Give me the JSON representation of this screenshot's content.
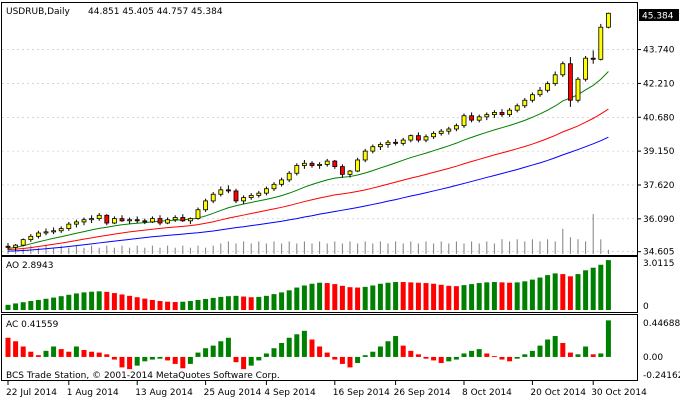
{
  "window": {
    "title": "USDRUB,Daily",
    "ohlc": "44.851 45.405 44.757 45.384",
    "current_price": "45.384",
    "copyright": "BCS Trade Station, © 2001-2014 MetaQuotes Software Corp."
  },
  "colors": {
    "background": "#ffffff",
    "frame": "#000000",
    "grid": "#c0c0c0",
    "bull_candle": "#ffff00",
    "bear_candle": "#ff0000",
    "candle_outline": "#000000",
    "ma_fast": "#008000",
    "ma_mid": "#ff0000",
    "ma_slow": "#0000ff",
    "volume": "#808080",
    "osc_up": "#008000",
    "osc_down": "#ff0000",
    "price_tag_bg": "#000000",
    "price_tag_fg": "#ffffff"
  },
  "chart_data": [
    {
      "type": "candlestick",
      "title": "USDRUB,Daily",
      "ylim": [
        34.5,
        45.8
      ],
      "price_ticks": [
        "43.740",
        "42.210",
        "40.680",
        "39.150",
        "37.620",
        "36.090",
        "34.605"
      ],
      "date_labels": [
        "22 Jul 2014",
        "1 Aug 2014",
        "13 Aug 2014",
        "25 Aug 2014",
        "4 Sep 2014",
        "16 Sep 2014",
        "26 Sep 2014",
        "8 Oct 2014",
        "20 Oct 2014",
        "30 Oct 2014"
      ],
      "candles": [
        [
          34.85,
          35.0,
          34.7,
          34.8
        ],
        [
          34.8,
          34.95,
          34.65,
          34.9
        ],
        [
          34.9,
          35.2,
          34.85,
          35.15
        ],
        [
          35.15,
          35.4,
          35.05,
          35.3
        ],
        [
          35.3,
          35.55,
          35.2,
          35.45
        ],
        [
          35.45,
          35.65,
          35.35,
          35.5
        ],
        [
          35.5,
          35.7,
          35.4,
          35.55
        ],
        [
          35.55,
          35.75,
          35.45,
          35.65
        ],
        [
          35.65,
          35.95,
          35.55,
          35.85
        ],
        [
          35.85,
          36.05,
          35.7,
          35.95
        ],
        [
          35.95,
          36.15,
          35.8,
          36.05
        ],
        [
          36.05,
          36.25,
          35.9,
          36.1
        ],
        [
          36.1,
          36.35,
          36.0,
          36.25
        ],
        [
          36.25,
          36.3,
          35.8,
          35.9
        ],
        [
          35.9,
          36.2,
          35.85,
          36.1
        ],
        [
          36.1,
          36.25,
          35.95,
          36.0
        ],
        [
          36.0,
          36.15,
          35.85,
          36.05
        ],
        [
          36.05,
          36.2,
          35.9,
          36.0
        ],
        [
          36.0,
          36.1,
          35.85,
          35.95
        ],
        [
          35.95,
          36.2,
          35.9,
          36.1
        ],
        [
          36.1,
          36.25,
          35.8,
          35.9
        ],
        [
          35.9,
          36.15,
          35.85,
          36.05
        ],
        [
          36.05,
          36.25,
          35.95,
          36.15
        ],
        [
          36.15,
          36.3,
          35.95,
          36.0
        ],
        [
          36.0,
          36.15,
          35.85,
          36.1
        ],
        [
          36.1,
          36.6,
          36.05,
          36.5
        ],
        [
          36.5,
          37.0,
          36.4,
          36.9
        ],
        [
          36.9,
          37.3,
          36.8,
          37.2
        ],
        [
          37.2,
          37.55,
          37.1,
          37.4
        ],
        [
          37.4,
          37.6,
          37.25,
          37.35
        ],
        [
          37.35,
          37.45,
          36.8,
          36.9
        ],
        [
          36.9,
          37.15,
          36.75,
          37.05
        ],
        [
          37.05,
          37.25,
          36.95,
          37.15
        ],
        [
          37.15,
          37.35,
          37.05,
          37.25
        ],
        [
          37.25,
          37.55,
          37.15,
          37.45
        ],
        [
          37.45,
          37.75,
          37.35,
          37.65
        ],
        [
          37.65,
          37.95,
          37.55,
          37.85
        ],
        [
          37.85,
          38.25,
          37.75,
          38.15
        ],
        [
          38.15,
          38.6,
          38.05,
          38.5
        ],
        [
          38.5,
          38.75,
          38.35,
          38.6
        ],
        [
          38.6,
          38.7,
          38.4,
          38.5
        ],
        [
          38.5,
          38.65,
          38.35,
          38.55
        ],
        [
          38.55,
          38.8,
          38.45,
          38.7
        ],
        [
          38.7,
          38.75,
          38.35,
          38.45
        ],
        [
          38.45,
          38.55,
          37.95,
          38.1
        ],
        [
          38.1,
          38.3,
          37.95,
          38.25
        ],
        [
          38.25,
          38.85,
          38.2,
          38.75
        ],
        [
          38.75,
          39.25,
          38.65,
          39.15
        ],
        [
          39.15,
          39.45,
          39.05,
          39.35
        ],
        [
          39.35,
          39.55,
          39.2,
          39.45
        ],
        [
          39.45,
          39.65,
          39.3,
          39.55
        ],
        [
          39.55,
          39.7,
          39.4,
          39.5
        ],
        [
          39.5,
          39.75,
          39.4,
          39.65
        ],
        [
          39.65,
          39.9,
          39.55,
          39.85
        ],
        [
          39.85,
          40.0,
          39.55,
          39.65
        ],
        [
          39.65,
          39.9,
          39.55,
          39.8
        ],
        [
          39.8,
          40.05,
          39.7,
          39.95
        ],
        [
          39.95,
          40.15,
          39.85,
          40.05
        ],
        [
          40.05,
          40.25,
          39.9,
          40.15
        ],
        [
          40.15,
          40.4,
          40.05,
          40.3
        ],
        [
          40.3,
          40.85,
          40.2,
          40.75
        ],
        [
          40.75,
          40.9,
          40.45,
          40.55
        ],
        [
          40.55,
          40.8,
          40.45,
          40.7
        ],
        [
          40.7,
          40.9,
          40.55,
          40.8
        ],
        [
          40.8,
          41.0,
          40.65,
          40.9
        ],
        [
          40.9,
          41.05,
          40.7,
          40.8
        ],
        [
          40.8,
          41.1,
          40.7,
          41.0
        ],
        [
          41.0,
          41.3,
          40.9,
          41.2
        ],
        [
          41.2,
          41.55,
          41.1,
          41.45
        ],
        [
          41.45,
          41.8,
          41.35,
          41.7
        ],
        [
          41.7,
          42.05,
          41.6,
          41.9
        ],
        [
          41.9,
          42.3,
          41.8,
          42.2
        ],
        [
          42.2,
          42.75,
          42.1,
          42.6
        ],
        [
          42.6,
          43.2,
          42.5,
          43.1
        ],
        [
          43.1,
          43.4,
          41.15,
          41.45
        ],
        [
          41.45,
          42.5,
          41.35,
          42.4
        ],
        [
          42.4,
          43.45,
          42.3,
          43.35
        ],
        [
          43.35,
          43.7,
          43.1,
          43.3
        ],
        [
          43.3,
          44.9,
          43.25,
          44.75
        ],
        [
          44.75,
          45.41,
          44.7,
          45.38
        ]
      ],
      "ma_fast": [
        34.75,
        34.8,
        34.87,
        34.96,
        35.05,
        35.13,
        35.21,
        35.28,
        35.36,
        35.44,
        35.51,
        35.59,
        35.66,
        35.71,
        35.77,
        35.82,
        35.86,
        35.89,
        35.92,
        35.95,
        35.98,
        36.01,
        36.03,
        36.05,
        36.07,
        36.13,
        36.22,
        36.34,
        36.47,
        36.59,
        36.68,
        36.76,
        36.83,
        36.9,
        36.97,
        37.05,
        37.14,
        37.25,
        37.38,
        37.52,
        37.64,
        37.75,
        37.85,
        37.93,
        37.97,
        38.0,
        38.07,
        38.16,
        38.27,
        38.39,
        38.5,
        38.62,
        38.74,
        38.86,
        38.96,
        39.06,
        39.17,
        39.28,
        39.39,
        39.51,
        39.65,
        39.77,
        39.89,
        40.0,
        40.11,
        40.21,
        40.31,
        40.42,
        40.54,
        40.68,
        40.83,
        41.0,
        41.19,
        41.42,
        41.55,
        41.7,
        41.92,
        42.12,
        42.4,
        42.75
      ],
      "ma_mid": [
        34.7,
        34.72,
        34.75,
        34.79,
        34.84,
        34.89,
        34.94,
        34.99,
        35.05,
        35.11,
        35.17,
        35.23,
        35.29,
        35.34,
        35.4,
        35.45,
        35.5,
        35.54,
        35.58,
        35.62,
        35.66,
        35.69,
        35.72,
        35.75,
        35.78,
        35.83,
        35.89,
        35.96,
        36.04,
        36.12,
        36.19,
        36.26,
        36.33,
        36.4,
        36.47,
        36.54,
        36.61,
        36.69,
        36.78,
        36.87,
        36.95,
        37.03,
        37.1,
        37.17,
        37.22,
        37.27,
        37.33,
        37.4,
        37.48,
        37.57,
        37.66,
        37.75,
        37.84,
        37.93,
        38.01,
        38.1,
        38.19,
        38.28,
        38.37,
        38.47,
        38.58,
        38.68,
        38.78,
        38.88,
        38.98,
        39.07,
        39.16,
        39.26,
        39.36,
        39.47,
        39.59,
        39.72,
        39.86,
        40.02,
        40.15,
        40.29,
        40.46,
        40.63,
        40.83,
        41.05
      ],
      "ma_slow": [
        34.63,
        34.64,
        34.66,
        34.68,
        34.71,
        34.74,
        34.77,
        34.8,
        34.84,
        34.88,
        34.92,
        34.96,
        35.0,
        35.04,
        35.08,
        35.12,
        35.16,
        35.2,
        35.24,
        35.28,
        35.31,
        35.34,
        35.37,
        35.4,
        35.43,
        35.46,
        35.5,
        35.54,
        35.59,
        35.64,
        35.69,
        35.73,
        35.78,
        35.83,
        35.88,
        35.93,
        35.98,
        36.04,
        36.1,
        36.17,
        36.23,
        36.3,
        36.36,
        36.42,
        36.48,
        36.54,
        36.6,
        36.67,
        36.74,
        36.81,
        36.89,
        36.96,
        37.04,
        37.12,
        37.19,
        37.27,
        37.35,
        37.43,
        37.51,
        37.6,
        37.69,
        37.78,
        37.87,
        37.96,
        38.05,
        38.14,
        38.23,
        38.32,
        38.42,
        38.52,
        38.62,
        38.73,
        38.85,
        38.98,
        39.1,
        39.22,
        39.35,
        39.48,
        39.62,
        39.78
      ],
      "volume": [
        0.15,
        0.2,
        0.15,
        0.2,
        0.15,
        0.2,
        0.15,
        0.2,
        0.15,
        0.2,
        0.15,
        0.2,
        0.15,
        0.2,
        0.15,
        0.2,
        0.15,
        0.2,
        0.15,
        0.2,
        0.15,
        0.2,
        0.15,
        0.2,
        0.15,
        0.2,
        0.15,
        0.2,
        0.25,
        0.3,
        0.25,
        0.3,
        0.25,
        0.3,
        0.25,
        0.3,
        0.25,
        0.3,
        0.25,
        0.3,
        0.25,
        0.3,
        0.25,
        0.3,
        0.25,
        0.3,
        0.25,
        0.3,
        0.25,
        0.3,
        0.25,
        0.3,
        0.25,
        0.3,
        0.25,
        0.3,
        0.25,
        0.3,
        0.25,
        0.3,
        0.25,
        0.3,
        0.25,
        0.3,
        0.25,
        0.35,
        0.3,
        0.35,
        0.3,
        0.35,
        0.3,
        0.35,
        0.3,
        0.6,
        0.4,
        0.35,
        0.3,
        0.95,
        0.35,
        0.1
      ]
    },
    {
      "type": "bar",
      "title": "AO 2.8943",
      "ylim": [
        0,
        3.0115
      ],
      "ticks": [
        "3.0115",
        "0"
      ],
      "values": [
        0.3,
        0.38,
        0.45,
        0.52,
        0.58,
        0.65,
        0.72,
        0.8,
        0.88,
        0.96,
        1.02,
        1.06,
        1.08,
        1.05,
        0.98,
        0.9,
        0.82,
        0.74,
        0.66,
        0.58,
        0.52,
        0.48,
        0.46,
        0.48,
        0.52,
        0.58,
        0.64,
        0.7,
        0.76,
        0.8,
        0.82,
        0.78,
        0.74,
        0.76,
        0.82,
        0.92,
        1.02,
        1.14,
        1.3,
        1.42,
        1.52,
        1.58,
        1.56,
        1.5,
        1.4,
        1.32,
        1.3,
        1.34,
        1.42,
        1.52,
        1.58,
        1.62,
        1.62,
        1.6,
        1.58,
        1.56,
        1.52,
        1.46,
        1.4,
        1.38,
        1.44,
        1.5,
        1.56,
        1.6,
        1.62,
        1.6,
        1.58,
        1.6,
        1.66,
        1.76,
        1.88,
        2.02,
        2.12,
        2.08,
        1.95,
        2.08,
        2.3,
        2.45,
        2.62,
        2.89
      ],
      "up": [
        true,
        true,
        true,
        true,
        true,
        true,
        true,
        true,
        true,
        true,
        true,
        true,
        true,
        false,
        false,
        false,
        false,
        false,
        false,
        false,
        false,
        false,
        false,
        true,
        true,
        true,
        true,
        true,
        true,
        true,
        true,
        false,
        false,
        true,
        true,
        true,
        true,
        true,
        true,
        true,
        true,
        true,
        false,
        false,
        false,
        false,
        false,
        true,
        true,
        true,
        true,
        true,
        false,
        false,
        false,
        false,
        false,
        false,
        false,
        false,
        true,
        true,
        true,
        true,
        true,
        false,
        false,
        true,
        true,
        true,
        true,
        true,
        true,
        false,
        false,
        true,
        true,
        true,
        true,
        true
      ]
    },
    {
      "type": "bar",
      "title": "AC 0.41559",
      "ylim": [
        -0.24162,
        0.44688
      ],
      "ticks": [
        "0.44688",
        "0.00",
        "-0.24162"
      ],
      "values": [
        0.22,
        0.18,
        0.12,
        0.06,
        0.02,
        0.07,
        0.12,
        0.09,
        0.06,
        0.12,
        0.08,
        0.06,
        0.05,
        0.03,
        -0.03,
        -0.12,
        -0.14,
        -0.1,
        -0.05,
        -0.03,
        -0.02,
        -0.04,
        -0.08,
        -0.13,
        -0.08,
        0.05,
        0.1,
        0.13,
        0.18,
        0.22,
        -0.06,
        -0.14,
        -0.1,
        -0.04,
        0.04,
        0.1,
        0.16,
        0.22,
        0.26,
        0.3,
        0.2,
        0.12,
        0.05,
        -0.03,
        -0.08,
        -0.12,
        -0.07,
        0.02,
        0.06,
        0.12,
        0.18,
        0.24,
        0.13,
        0.07,
        0.03,
        -0.02,
        -0.04,
        -0.07,
        -0.05,
        -0.03,
        0.04,
        0.07,
        0.09,
        0.04,
        0.01,
        -0.03,
        -0.05,
        -0.02,
        0.03,
        0.07,
        0.13,
        0.2,
        0.24,
        0.16,
        0.05,
        0.03,
        0.12,
        0.03,
        0.04,
        0.42
      ],
      "up": [
        false,
        false,
        false,
        false,
        false,
        true,
        true,
        false,
        false,
        true,
        false,
        false,
        false,
        false,
        false,
        false,
        false,
        true,
        true,
        true,
        true,
        false,
        false,
        false,
        true,
        true,
        true,
        true,
        true,
        true,
        false,
        false,
        true,
        true,
        true,
        true,
        true,
        true,
        true,
        true,
        false,
        false,
        false,
        false,
        false,
        false,
        true,
        true,
        true,
        true,
        true,
        true,
        false,
        false,
        false,
        false,
        false,
        false,
        true,
        true,
        true,
        true,
        true,
        false,
        false,
        false,
        false,
        true,
        true,
        true,
        true,
        true,
        true,
        false,
        false,
        true,
        true,
        false,
        true,
        true
      ]
    }
  ]
}
